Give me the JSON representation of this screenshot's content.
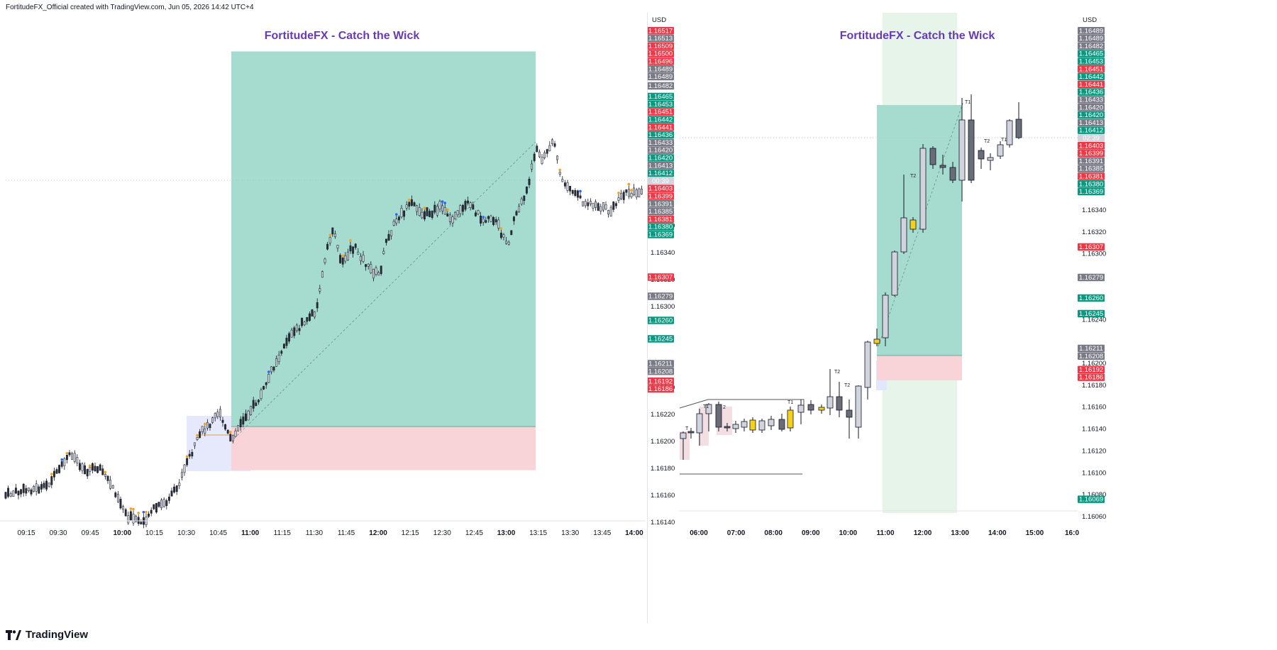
{
  "caption": "FortitudeFX_Official created with TradingView.com, Jun 05, 2026 14:42 UTC+4",
  "brand": {
    "name": "TradingView",
    "icon": "tradingview-logo-icon"
  },
  "colors": {
    "red": "#f23645",
    "green": "#089981",
    "gray": "#787b86",
    "title": "#673ab7",
    "target_zone": "#a6dcd0",
    "stop_zone": "#f8d3d7",
    "session": "#e6f4e9",
    "order_block": "#e3e7fb"
  },
  "chart_data": [
    {
      "type": "candlestick",
      "title": "FortitudeFX - Catch the Wick",
      "currency": "USD",
      "current_price": "1.16403",
      "countdown": "00:39",
      "x_ticks": [
        {
          "label": "09:15",
          "bold": false
        },
        {
          "label": "09:30",
          "bold": false
        },
        {
          "label": "09:45",
          "bold": false
        },
        {
          "label": "10:00",
          "bold": true
        },
        {
          "label": "10:15",
          "bold": false
        },
        {
          "label": "10:30",
          "bold": false
        },
        {
          "label": "10:45",
          "bold": false
        },
        {
          "label": "11:00",
          "bold": true
        },
        {
          "label": "11:15",
          "bold": false
        },
        {
          "label": "11:30",
          "bold": false
        },
        {
          "label": "11:45",
          "bold": false
        },
        {
          "label": "12:00",
          "bold": true
        },
        {
          "label": "12:15",
          "bold": false
        },
        {
          "label": "12:30",
          "bold": false
        },
        {
          "label": "12:45",
          "bold": false
        },
        {
          "label": "13:00",
          "bold": true
        },
        {
          "label": "13:15",
          "bold": false
        },
        {
          "label": "13:30",
          "bold": false
        },
        {
          "label": "13:45",
          "bold": false
        },
        {
          "label": "14:00",
          "bold": true
        }
      ],
      "y_ticks": [
        "1.16360",
        "1.16340",
        "1.16320",
        "1.16300",
        "1.16240",
        "1.16220",
        "1.16200",
        "1.16180",
        "1.16160",
        "1.16140"
      ],
      "price_labels": [
        {
          "value": "1.16517",
          "color": "red"
        },
        {
          "value": "1.16513",
          "color": "gray"
        },
        {
          "value": "1.16509",
          "color": "red"
        },
        {
          "value": "1.16500",
          "color": "red"
        },
        {
          "value": "1.16496",
          "color": "red"
        },
        {
          "value": "1.16489",
          "color": "gray"
        },
        {
          "value": "1.16489",
          "color": "gray"
        },
        {
          "value": "1.16482",
          "color": "gray"
        },
        {
          "value": "1.16465",
          "color": "green"
        },
        {
          "value": "1.16453",
          "color": "green"
        },
        {
          "value": "1.16451",
          "color": "red"
        },
        {
          "value": "1.16442",
          "color": "green"
        },
        {
          "value": "1.16441",
          "color": "red"
        },
        {
          "value": "1.16436",
          "color": "green"
        },
        {
          "value": "1.16433",
          "color": "gray"
        },
        {
          "value": "1.16420",
          "color": "gray"
        },
        {
          "value": "1.16420",
          "color": "green"
        },
        {
          "value": "1.16413",
          "color": "gray"
        },
        {
          "value": "1.16412",
          "color": "green"
        },
        {
          "value": "00:39",
          "color": "light"
        },
        {
          "value": "1.16403",
          "color": "red"
        },
        {
          "value": "1.16399",
          "color": "red"
        },
        {
          "value": "1.16391",
          "color": "gray"
        },
        {
          "value": "1.16385",
          "color": "gray"
        },
        {
          "value": "1.16381",
          "color": "red"
        },
        {
          "value": "1.16380",
          "color": "green"
        },
        {
          "value": "1.16369",
          "color": "green"
        },
        {
          "value": "1.16307",
          "color": "red"
        },
        {
          "value": "1.16279",
          "color": "gray"
        },
        {
          "value": "1.16260",
          "color": "green"
        },
        {
          "value": "1.16245",
          "color": "green"
        },
        {
          "value": "1.16211",
          "color": "gray"
        },
        {
          "value": "1.16208",
          "color": "gray"
        },
        {
          "value": "1.16192",
          "color": "red"
        },
        {
          "value": "1.16186",
          "color": "red"
        }
      ],
      "trade": {
        "entry": 1.16211,
        "stop": 1.16186,
        "target": 1.16465
      }
    },
    {
      "type": "candlestick",
      "title": "FortitudeFX - Catch the Wick",
      "currency": "USD",
      "current_price": "1.16403",
      "countdown": "02:39",
      "x_ticks": [
        {
          "label": "06:00",
          "bold": true
        },
        {
          "label": "07:00",
          "bold": true
        },
        {
          "label": "08:00",
          "bold": true
        },
        {
          "label": "09:00",
          "bold": true
        },
        {
          "label": "10:00",
          "bold": true
        },
        {
          "label": "11:00",
          "bold": true
        },
        {
          "label": "12:00",
          "bold": true
        },
        {
          "label": "13:00",
          "bold": true
        },
        {
          "label": "14:00",
          "bold": true
        },
        {
          "label": "15:00",
          "bold": true
        },
        {
          "label": "16:0",
          "bold": true
        }
      ],
      "y_ticks": [
        "1.16340",
        "1.16320",
        "1.16300",
        "1.16240",
        "1.16200",
        "1.16180",
        "1.16160",
        "1.16140",
        "1.16120",
        "1.16100",
        "1.16080",
        "1.16060"
      ],
      "price_labels": [
        {
          "value": "1.16489",
          "color": "gray"
        },
        {
          "value": "1.16489",
          "color": "gray"
        },
        {
          "value": "1.16482",
          "color": "gray"
        },
        {
          "value": "1.16465",
          "color": "green"
        },
        {
          "value": "1.16453",
          "color": "green"
        },
        {
          "value": "1.16451",
          "color": "red"
        },
        {
          "value": "1.16442",
          "color": "green"
        },
        {
          "value": "1.16441",
          "color": "red"
        },
        {
          "value": "1.16436",
          "color": "green"
        },
        {
          "value": "1.16433",
          "color": "gray"
        },
        {
          "value": "1.16420",
          "color": "gray"
        },
        {
          "value": "1.16420",
          "color": "green"
        },
        {
          "value": "1.16413",
          "color": "gray"
        },
        {
          "value": "1.16412",
          "color": "green"
        },
        {
          "value": "02:39",
          "color": "light"
        },
        {
          "value": "1.16403",
          "color": "red"
        },
        {
          "value": "1.16399",
          "color": "red"
        },
        {
          "value": "1.16391",
          "color": "gray"
        },
        {
          "value": "1.16385",
          "color": "gray"
        },
        {
          "value": "1.16381",
          "color": "red"
        },
        {
          "value": "1.16380",
          "color": "green"
        },
        {
          "value": "1.16369",
          "color": "green"
        },
        {
          "value": "1.16307",
          "color": "red"
        },
        {
          "value": "1.16279",
          "color": "gray"
        },
        {
          "value": "1.16260",
          "color": "green"
        },
        {
          "value": "1.16245",
          "color": "green"
        },
        {
          "value": "1.16211",
          "color": "gray"
        },
        {
          "value": "1.16208",
          "color": "gray"
        },
        {
          "value": "1.16192",
          "color": "red"
        },
        {
          "value": "1.16186",
          "color": "red"
        },
        {
          "value": "1.16069",
          "color": "green"
        }
      ],
      "candle_annotations": [
        "T",
        "T1",
        "2",
        "T1",
        "T2",
        "T2",
        "T2",
        "T1",
        "T2",
        "T1"
      ],
      "trade": {
        "entry": 1.16211,
        "stop": 1.16186,
        "target": 1.16465
      }
    }
  ]
}
